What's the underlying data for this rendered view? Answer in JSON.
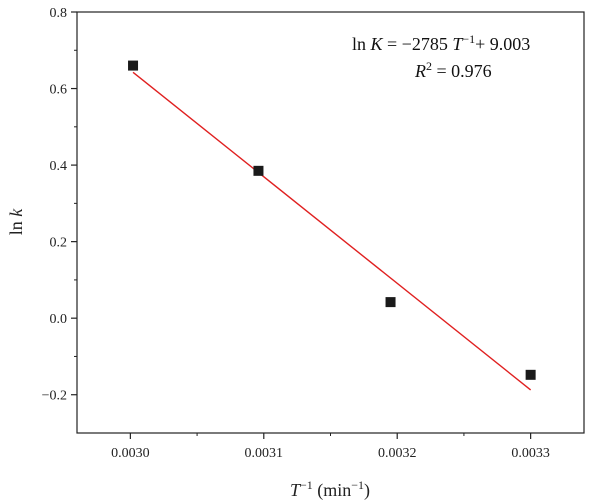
{
  "chart_data": {
    "type": "scatter",
    "title": "",
    "xlabel_symbol": "T",
    "xlabel_exponent": "−1",
    "xlabel_units": " (min",
    "xlabel_units_exponent": "−1",
    "xlabel_close": ")",
    "ylabel_prefix": "ln ",
    "ylabel_symbol": "k",
    "xlim": [
      0.00296,
      0.00334
    ],
    "ylim": [
      -0.3,
      0.8
    ],
    "xticks": [
      0.003,
      0.0031,
      0.0032,
      0.0033
    ],
    "xtick_labels": [
      "0.0030",
      "0.0031",
      "0.0032",
      "0.0033"
    ],
    "yticks": [
      -0.2,
      0.0,
      0.2,
      0.4,
      0.6,
      0.8
    ],
    "ytick_labels": [
      "−0.2",
      "0.0",
      "0.2",
      "0.4",
      "0.6",
      "0.8"
    ],
    "grid": false,
    "series": [
      {
        "marker": "square",
        "color": "#1a1a1a",
        "x": [
          0.003002,
          0.003096,
          0.003195,
          0.0033
        ],
        "y": [
          0.66,
          0.385,
          0.042,
          -0.148
        ]
      }
    ],
    "fit_line": {
      "color": "#e02020",
      "slope": -2785,
      "intercept": 9.003,
      "x_start": 0.003002,
      "x_end": 0.0033
    },
    "annotation": {
      "line1_prefix": "ln ",
      "line1_symbol_K": "K",
      "line1_mid": " = −2785 ",
      "line1_symbol_T": "T",
      "line1_exponent": "−1",
      "line1_suffix": "+ 9.003",
      "line2_symbol": "R",
      "line2_exponent": "2",
      "line2_suffix": " = 0.976"
    }
  }
}
